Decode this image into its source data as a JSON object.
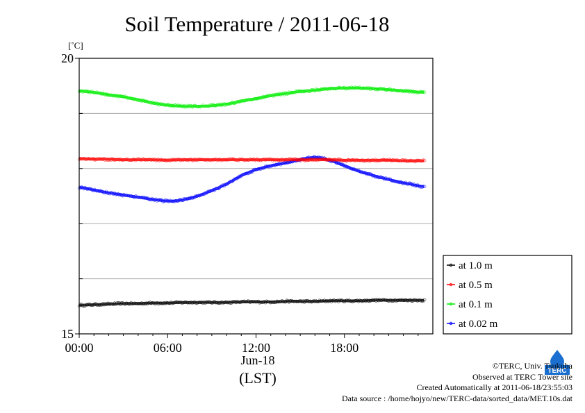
{
  "chart_data": {
    "type": "line",
    "title": "Soil Temperature / 2011-06-18",
    "ylabel_unit": "[˚C]",
    "ylim": [
      15,
      20
    ],
    "y_tick_labels": [
      "20",
      "15"
    ],
    "x_range_hours": [
      0,
      23.5
    ],
    "x_tick_labels": [
      "00:00",
      "06:00",
      "12:00",
      "18:00"
    ],
    "x_date_label": "Jun-18",
    "x_axis_label": "(LST)",
    "grid_y": [
      16,
      17,
      18,
      19
    ],
    "legend_position": "right-bottom",
    "legend_labels": [
      "at 1.0 m",
      "at 0.5 m",
      "at 0.1 m",
      "at 0.02 m"
    ],
    "x": [
      0,
      1,
      2,
      3,
      4,
      5,
      6,
      7,
      8,
      9,
      10,
      11,
      12,
      13,
      14,
      15,
      16,
      17,
      18,
      19,
      20,
      21,
      22,
      23.5
    ],
    "series": [
      {
        "name": "at 1.0 m",
        "color": "#000000",
        "values": [
          15.52,
          15.53,
          15.54,
          15.55,
          15.55,
          15.56,
          15.56,
          15.57,
          15.57,
          15.57,
          15.57,
          15.58,
          15.58,
          15.58,
          15.59,
          15.59,
          15.59,
          15.6,
          15.6,
          15.6,
          15.61,
          15.61,
          15.61,
          15.61
        ]
      },
      {
        "name": "at 0.5 m",
        "color": "#ff0000",
        "values": [
          18.18,
          18.17,
          18.17,
          18.16,
          18.16,
          18.16,
          18.15,
          18.16,
          18.16,
          18.16,
          18.16,
          18.16,
          18.16,
          18.16,
          18.16,
          18.16,
          18.16,
          18.16,
          18.15,
          18.15,
          18.15,
          18.15,
          18.14,
          18.14
        ]
      },
      {
        "name": "at 0.1 m",
        "color": "#00ee00",
        "values": [
          19.41,
          19.38,
          19.34,
          19.3,
          19.25,
          19.19,
          19.15,
          19.13,
          19.13,
          19.14,
          19.17,
          19.22,
          19.27,
          19.32,
          19.36,
          19.4,
          19.42,
          19.45,
          19.46,
          19.46,
          19.45,
          19.43,
          19.41,
          19.38
        ]
      },
      {
        "name": "at 0.02 m",
        "color": "#0000ff",
        "values": [
          17.66,
          17.61,
          17.56,
          17.52,
          17.48,
          17.44,
          17.41,
          17.43,
          17.5,
          17.6,
          17.72,
          17.87,
          17.98,
          18.05,
          18.1,
          18.16,
          18.2,
          18.15,
          18.05,
          17.95,
          17.87,
          17.8,
          17.74,
          17.67
        ]
      }
    ]
  },
  "footer": {
    "copyright": "©TERC, Univ. Tsukuba",
    "observed": "Observed at TERC Tower site",
    "created": "Created Automatically at 2011-06-18/23:55:03",
    "source": "Data source : /home/hojyo/new/TERC-data/sorted_data/MET.10s.dat"
  },
  "logo": {
    "name": "terc-logo",
    "text": "TERC"
  }
}
